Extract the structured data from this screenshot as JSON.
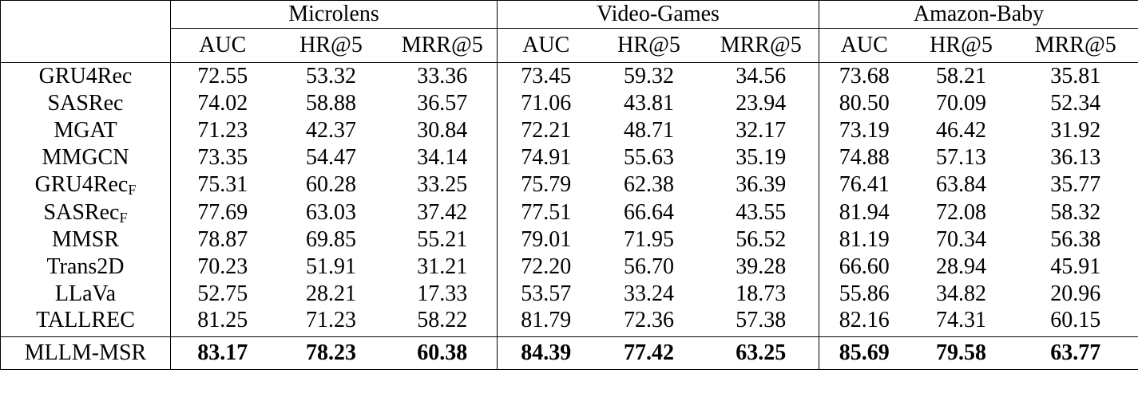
{
  "groups": [
    "Microlens",
    "Video-Games",
    "Amazon-Baby"
  ],
  "metrics": [
    "AUC",
    "HR@5",
    "MRR@5"
  ],
  "rows": [
    {
      "name": "GRU4Rec",
      "sub": "",
      "values": [
        "72.55",
        "53.32",
        "33.36",
        "73.45",
        "59.32",
        "34.56",
        "73.68",
        "58.21",
        "35.81"
      ]
    },
    {
      "name": "SASRec",
      "sub": "",
      "values": [
        "74.02",
        "58.88",
        "36.57",
        "71.06",
        "43.81",
        "23.94",
        "80.50",
        "70.09",
        "52.34"
      ]
    },
    {
      "name": "MGAT",
      "sub": "",
      "values": [
        "71.23",
        "42.37",
        "30.84",
        "72.21",
        "48.71",
        "32.17",
        "73.19",
        "46.42",
        "31.92"
      ]
    },
    {
      "name": "MMGCN",
      "sub": "",
      "values": [
        "73.35",
        "54.47",
        "34.14",
        "74.91",
        "55.63",
        "35.19",
        "74.88",
        "57.13",
        "36.13"
      ]
    },
    {
      "name": "GRU4Rec",
      "sub": "F",
      "values": [
        "75.31",
        "60.28",
        "33.25",
        "75.79",
        "62.38",
        "36.39",
        "76.41",
        "63.84",
        "35.77"
      ]
    },
    {
      "name": "SASRec",
      "sub": "F",
      "values": [
        "77.69",
        "63.03",
        "37.42",
        "77.51",
        "66.64",
        "43.55",
        "81.94",
        "72.08",
        "58.32"
      ]
    },
    {
      "name": "MMSR",
      "sub": "",
      "values": [
        "78.87",
        "69.85",
        "55.21",
        "79.01",
        "71.95",
        "56.52",
        "81.19",
        "70.34",
        "56.38"
      ]
    },
    {
      "name": "Trans2D",
      "sub": "",
      "values": [
        "70.23",
        "51.91",
        "31.21",
        "72.20",
        "56.70",
        "39.28",
        "66.60",
        "28.94",
        "45.91"
      ]
    },
    {
      "name": "LLaVa",
      "sub": "",
      "values": [
        "52.75",
        "28.21",
        "17.33",
        "53.57",
        "33.24",
        "18.73",
        "55.86",
        "34.82",
        "20.96"
      ]
    },
    {
      "name": "TALLREC",
      "sub": "",
      "values": [
        "81.25",
        "71.23",
        "58.22",
        "81.79",
        "72.36",
        "57.38",
        "82.16",
        "74.31",
        "60.15"
      ]
    }
  ],
  "best": {
    "name": "MLLM-MSR",
    "values": [
      "83.17",
      "78.23",
      "60.38",
      "84.39",
      "77.42",
      "63.25",
      "85.69",
      "79.58",
      "63.77"
    ]
  }
}
